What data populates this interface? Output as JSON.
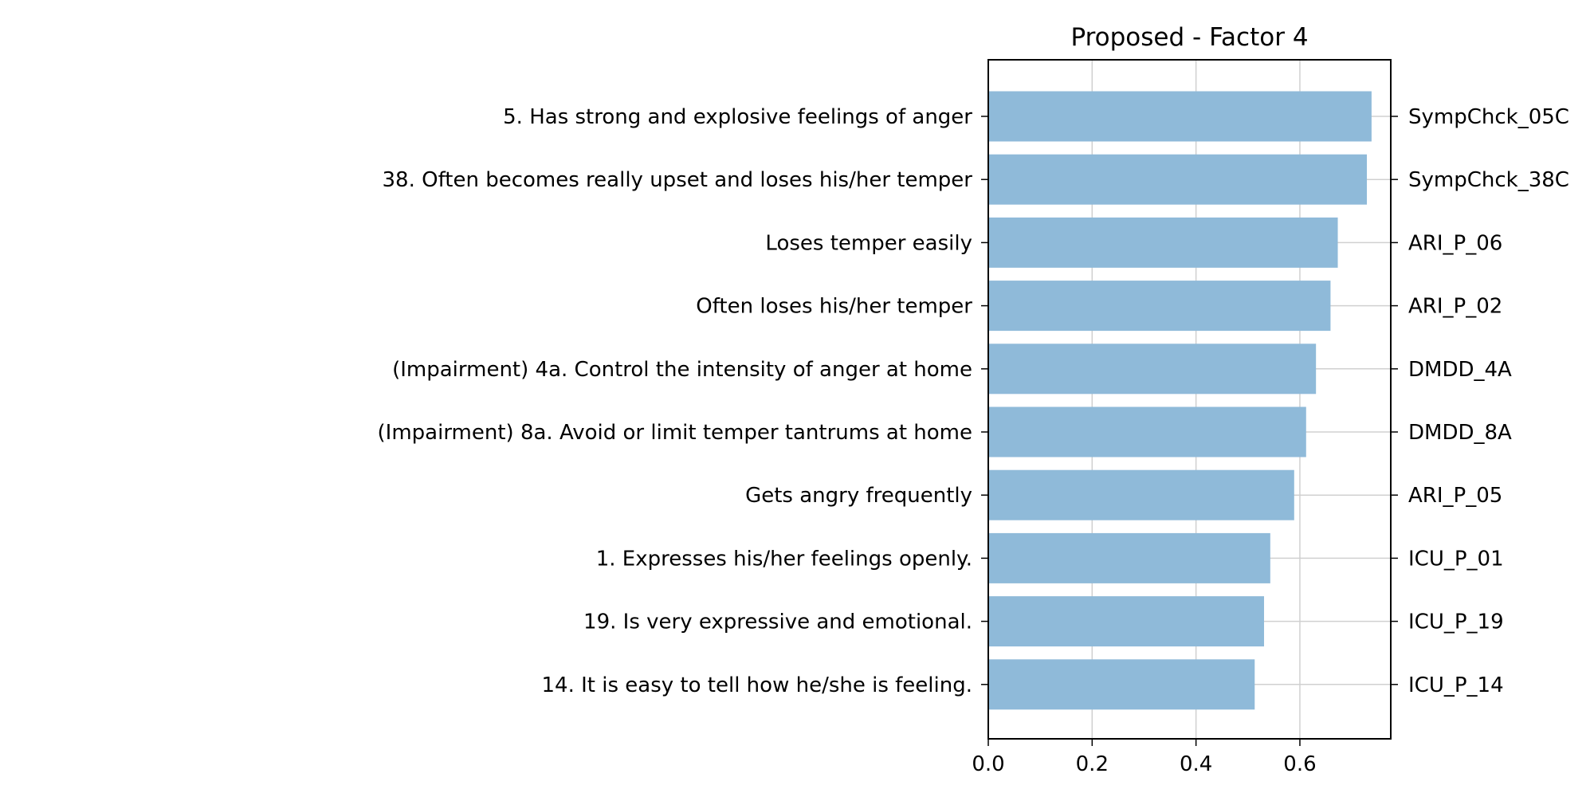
{
  "chart_data": {
    "type": "bar",
    "orientation": "horizontal",
    "title": "Proposed - Factor 4",
    "xlabel": "",
    "ylabel": "",
    "xlim": [
      0,
      0.775
    ],
    "x_ticks": [
      0.0,
      0.2,
      0.4,
      0.6
    ],
    "x_tick_labels": [
      "0.0",
      "0.2",
      "0.4",
      "0.6"
    ],
    "grid": true,
    "bar_color": "#8fbad9",
    "categories": [
      "5. Has strong and explosive feelings of anger",
      "38. Often becomes really upset and loses his/her temper",
      "Loses temper easily",
      "Often loses his/her temper",
      "(Impairment) 4a. Control the intensity of anger at home",
      "(Impairment) 8a. Avoid or limit temper tantrums at home",
      "Gets angry frequently",
      "1. Expresses his/her feelings openly.",
      "19. Is very expressive and emotional.",
      "14. It is easy to tell how he/she is feeling."
    ],
    "codes": [
      "SympChck_05C",
      "SympChck_38C",
      "ARI_P_06",
      "ARI_P_02",
      "DMDD_4A",
      "DMDD_8A",
      "ARI_P_05",
      "ICU_P_01",
      "ICU_P_19",
      "ICU_P_14"
    ],
    "values": [
      0.738,
      0.729,
      0.673,
      0.659,
      0.631,
      0.612,
      0.589,
      0.543,
      0.531,
      0.513
    ]
  }
}
